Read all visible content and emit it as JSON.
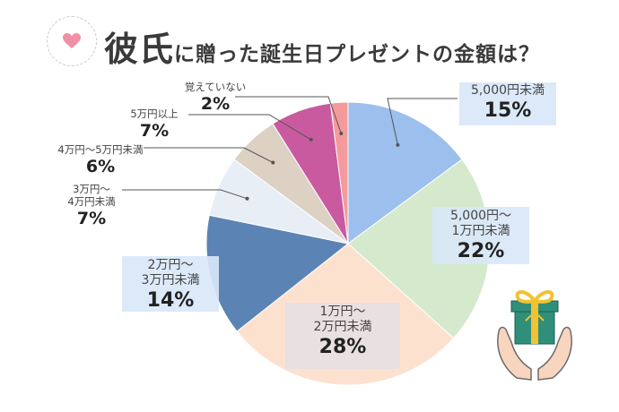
{
  "title": {
    "main": "彼氏",
    "rest": "に贈った誕生日プレゼントの金額は？"
  },
  "chart_data": {
    "type": "pie",
    "title": "彼氏に贈った誕生日プレゼントの金額は？",
    "start_angle_deg": 0,
    "direction": "clockwise",
    "slices": [
      {
        "label": "5,000円未満",
        "value": 15,
        "display": "15%",
        "color": "#9dbfed"
      },
      {
        "label": "5,000円～1万円未満",
        "value": 22,
        "display": "22%",
        "color": "#d5e9cc"
      },
      {
        "label": "1万円～2万円未満",
        "value": 28,
        "display": "28%",
        "color": "#fde1cf"
      },
      {
        "label": "2万円～3万円未満",
        "value": 14,
        "display": "14%",
        "color": "#5b84b5"
      },
      {
        "label": "3万円～4万円未満",
        "value": 7,
        "display": "7%",
        "color": "#e8eef6"
      },
      {
        "label": "4万円～5万円未満",
        "value": 6,
        "display": "6%",
        "color": "#ddd1c4"
      },
      {
        "label": "5万円以上",
        "value": 7,
        "display": "7%",
        "color": "#c95aa0"
      },
      {
        "label": "覚えていない",
        "value": 2,
        "display": "2%",
        "color": "#f59a9a"
      }
    ]
  },
  "labels": [
    {
      "lines": [
        "5,000円未満"
      ],
      "pct": "15%"
    },
    {
      "lines": [
        "5,000円～",
        "1万円未満"
      ],
      "pct": "22%"
    },
    {
      "lines": [
        "1万円～",
        "2万円未満"
      ],
      "pct": "28%"
    },
    {
      "lines": [
        "2万円～",
        "3万円未満"
      ],
      "pct": "14%"
    },
    {
      "lines": [
        "3万円～",
        "4万円未満"
      ],
      "pct": "7%"
    },
    {
      "lines": [
        "4万円～5万円未満"
      ],
      "pct": "6%"
    },
    {
      "lines": [
        "5万円以上"
      ],
      "pct": "7%"
    },
    {
      "lines": [
        "覚えていない"
      ],
      "pct": "2%"
    }
  ],
  "icons": [
    "heart-icon",
    "gift-in-hands-icon"
  ],
  "colors": {
    "label_box_blue": "#d9e7f8",
    "label_box_gray": "#e6e0e3",
    "gift_box": "#2f8f7a",
    "ribbon": "#f1c232",
    "hands": "#f8d5bf"
  }
}
